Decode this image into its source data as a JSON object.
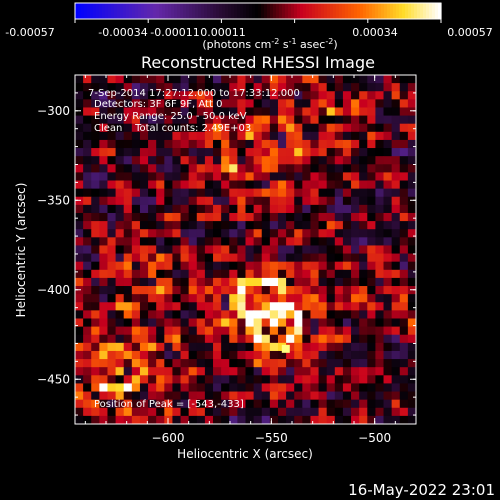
{
  "colorbar": {
    "ticks": [
      "-0.00057",
      "-0.00034",
      "-0.00011",
      "0.00011",
      "0.00034",
      "0.00057"
    ],
    "unit_main": "(photons cm",
    "unit_sup1": "-2",
    "unit_mid": " s",
    "unit_sup2": "-1",
    "unit_mid2": " asec",
    "unit_sup3": "-2",
    "unit_end": ")"
  },
  "annotations": {
    "time_range": "7-Sep-2014 17:27:12.000 to 17:33:12.000",
    "detectors": "Detectors: 3F 6F 9F, Att 0",
    "energy": "Energy Range: 25.0 - 50.0 keV",
    "clean": "Clean    Total counts: 2.49E+03",
    "peak": "Position of Peak = [-543,-433]"
  },
  "footer": {
    "timestamp": "16-May-2022 23:01"
  },
  "colors": {
    "background": "#000000",
    "text": "#ffffff",
    "peak": "#ffff80"
  },
  "chart_data": {
    "type": "heatmap",
    "title": "Reconstructed RHESSI Image",
    "xlabel": "Heliocentric X (arcsec)",
    "ylabel": "Heliocentric Y (arcsec)",
    "xlim": [
      -645,
      -480
    ],
    "ylim": [
      -475,
      -280
    ],
    "xticks": [
      -600,
      -550,
      -500
    ],
    "xtick_labels": [
      "−600",
      "−550",
      "−500"
    ],
    "yticks": [
      -300,
      -350,
      -400,
      -450
    ],
    "ytick_labels": [
      "−300",
      "−350",
      "−400",
      "−450"
    ],
    "color_range": [
      -0.00057,
      0.00057
    ],
    "colormap": "blue-purple-red-orange-yellow-white",
    "peak": {
      "x": -543,
      "y": -433
    },
    "hot_regions": [
      {
        "x": -625,
        "y": -445,
        "strength": 0.9,
        "radius": 18
      },
      {
        "x": -548,
        "y": -420,
        "strength": 1.0,
        "radius": 16
      },
      {
        "x": -555,
        "y": -405,
        "strength": 0.85,
        "radius": 14
      },
      {
        "x": -560,
        "y": -325,
        "strength": 0.55,
        "radius": 22
      },
      {
        "x": -610,
        "y": -390,
        "strength": 0.5,
        "radius": 16
      },
      {
        "x": -495,
        "y": -400,
        "strength": 0.45,
        "radius": 14
      },
      {
        "x": -520,
        "y": -300,
        "strength": 0.4,
        "radius": 14
      }
    ]
  }
}
